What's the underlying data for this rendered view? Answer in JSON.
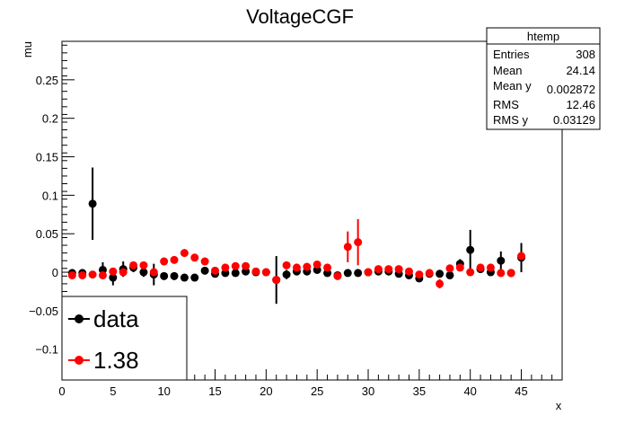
{
  "chart_data": {
    "type": "scatter",
    "title": "VoltageCGF",
    "xlabel": "x",
    "ylabel": "mu",
    "xlim": [
      0,
      49
    ],
    "ylim": [
      -0.14,
      0.3
    ],
    "x_ticks": [
      0,
      5,
      10,
      15,
      20,
      25,
      30,
      35,
      40,
      45
    ],
    "y_ticks": [
      -0.1,
      -0.05,
      0,
      0.05,
      0.1,
      0.15,
      0.2,
      0.25
    ],
    "y_tick_labels": [
      "−0.1",
      "−0.05",
      "0",
      "0.05",
      "0.1",
      "0.15",
      "0.2",
      "0.25"
    ],
    "grid": false,
    "legend_position": "bottom-left",
    "series": [
      {
        "name": "data",
        "color": "#000000",
        "points": [
          {
            "x": 1,
            "y": -0.001,
            "err": 0.004
          },
          {
            "x": 2,
            "y": -0.001,
            "err": 0.004
          },
          {
            "x": 3,
            "y": 0.089,
            "err": 0.047
          },
          {
            "x": 4,
            "y": 0.003,
            "err": 0.01
          },
          {
            "x": 5,
            "y": -0.007,
            "err": 0.01
          },
          {
            "x": 6,
            "y": 0.004,
            "err": 0.01
          },
          {
            "x": 7,
            "y": 0.006,
            "err": 0.006
          },
          {
            "x": 8,
            "y": 0.0,
            "err": 0.006
          },
          {
            "x": 9,
            "y": -0.003,
            "err": 0.014
          },
          {
            "x": 10,
            "y": -0.005,
            "err": 0.005
          },
          {
            "x": 11,
            "y": -0.005,
            "err": 0.005
          },
          {
            "x": 12,
            "y": -0.007,
            "err": 0.004
          },
          {
            "x": 13,
            "y": -0.007,
            "err": 0.004
          },
          {
            "x": 14,
            "y": 0.002,
            "err": 0.004
          },
          {
            "x": 15,
            "y": -0.002,
            "err": 0.004
          },
          {
            "x": 16,
            "y": -0.001,
            "err": 0.004
          },
          {
            "x": 17,
            "y": -0.001,
            "err": 0.004
          },
          {
            "x": 18,
            "y": 0.001,
            "err": 0.004
          },
          {
            "x": 19,
            "y": 0.0,
            "err": 0.004
          },
          {
            "x": 20,
            "y": 0.0,
            "err": 0.004
          },
          {
            "x": 21,
            "y": -0.01,
            "err": 0.031
          },
          {
            "x": 22,
            "y": -0.003,
            "err": 0.006
          },
          {
            "x": 23,
            "y": 0.001,
            "err": 0.004
          },
          {
            "x": 24,
            "y": 0.001,
            "err": 0.004
          },
          {
            "x": 25,
            "y": 0.003,
            "err": 0.004
          },
          {
            "x": 26,
            "y": -0.001,
            "err": 0.004
          },
          {
            "x": 27,
            "y": -0.004,
            "err": 0.004
          },
          {
            "x": 28,
            "y": -0.001,
            "err": 0.004
          },
          {
            "x": 29,
            "y": -0.001,
            "err": 0.004
          },
          {
            "x": 30,
            "y": 0.0,
            "err": 0.004
          },
          {
            "x": 31,
            "y": 0.001,
            "err": 0.004
          },
          {
            "x": 32,
            "y": 0.001,
            "err": 0.004
          },
          {
            "x": 33,
            "y": -0.002,
            "err": 0.004
          },
          {
            "x": 34,
            "y": -0.004,
            "err": 0.004
          },
          {
            "x": 35,
            "y": -0.008,
            "err": 0.004
          },
          {
            "x": 36,
            "y": -0.002,
            "err": 0.004
          },
          {
            "x": 37,
            "y": -0.002,
            "err": 0.004
          },
          {
            "x": 38,
            "y": -0.004,
            "err": 0.004
          },
          {
            "x": 39,
            "y": 0.011,
            "err": 0.006
          },
          {
            "x": 40,
            "y": 0.029,
            "err": 0.026
          },
          {
            "x": 41,
            "y": 0.004,
            "err": 0.004
          },
          {
            "x": 42,
            "y": 0.0,
            "err": 0.004
          },
          {
            "x": 43,
            "y": 0.015,
            "err": 0.012
          },
          {
            "x": 44,
            "y": -0.001,
            "err": 0.004
          },
          {
            "x": 45,
            "y": 0.019,
            "err": 0.019
          }
        ]
      },
      {
        "name": "1.38",
        "color": "#ff0000",
        "points": [
          {
            "x": 1,
            "y": -0.004
          },
          {
            "x": 2,
            "y": -0.004
          },
          {
            "x": 3,
            "y": -0.003
          },
          {
            "x": 4,
            "y": -0.004
          },
          {
            "x": 5,
            "y": 0.001
          },
          {
            "x": 6,
            "y": 0.0
          },
          {
            "x": 7,
            "y": 0.009
          },
          {
            "x": 8,
            "y": 0.009
          },
          {
            "x": 9,
            "y": 0.0
          },
          {
            "x": 10,
            "y": 0.014
          },
          {
            "x": 11,
            "y": 0.016
          },
          {
            "x": 12,
            "y": 0.025
          },
          {
            "x": 13,
            "y": 0.019
          },
          {
            "x": 14,
            "y": 0.014
          },
          {
            "x": 15,
            "y": 0.002
          },
          {
            "x": 16,
            "y": 0.006
          },
          {
            "x": 17,
            "y": 0.008
          },
          {
            "x": 18,
            "y": 0.008
          },
          {
            "x": 19,
            "y": 0.001
          },
          {
            "x": 20,
            "y": 0.0
          },
          {
            "x": 21,
            "y": -0.01
          },
          {
            "x": 22,
            "y": 0.009
          },
          {
            "x": 23,
            "y": 0.006
          },
          {
            "x": 24,
            "y": 0.007
          },
          {
            "x": 25,
            "y": 0.01
          },
          {
            "x": 26,
            "y": 0.006
          },
          {
            "x": 27,
            "y": -0.005
          },
          {
            "x": 28,
            "y": 0.033,
            "err": 0.02
          },
          {
            "x": 29,
            "y": 0.039,
            "err": 0.03
          },
          {
            "x": 30,
            "y": 0.0
          },
          {
            "x": 31,
            "y": 0.004
          },
          {
            "x": 32,
            "y": 0.004
          },
          {
            "x": 33,
            "y": 0.004
          },
          {
            "x": 34,
            "y": 0.001
          },
          {
            "x": 35,
            "y": -0.003
          },
          {
            "x": 36,
            "y": -0.001
          },
          {
            "x": 37,
            "y": -0.015,
            "err": 0.006
          },
          {
            "x": 38,
            "y": 0.005
          },
          {
            "x": 39,
            "y": 0.006
          },
          {
            "x": 40,
            "y": 0.0
          },
          {
            "x": 41,
            "y": 0.006
          },
          {
            "x": 42,
            "y": 0.006
          },
          {
            "x": 43,
            "y": -0.001
          },
          {
            "x": 44,
            "y": -0.001
          },
          {
            "x": 45,
            "y": 0.021
          }
        ]
      }
    ],
    "stats_box": {
      "title": "htemp",
      "rows": [
        {
          "label": "Entries",
          "value": "308"
        },
        {
          "label": "Mean",
          "value": "24.14"
        },
        {
          "label": "Mean y",
          "value": "0.002872"
        },
        {
          "label": "RMS",
          "value": "12.46"
        },
        {
          "label": "RMS y",
          "value": "0.03129"
        }
      ]
    }
  }
}
